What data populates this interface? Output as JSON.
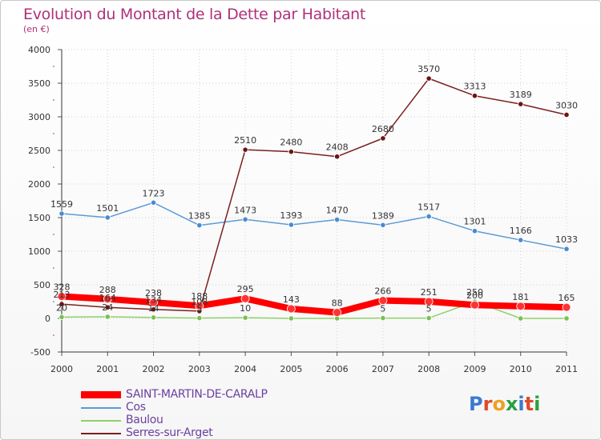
{
  "header": {
    "title": "Evolution du Montant de la Dette par Habitant",
    "unit": "(en €)"
  },
  "logo": {
    "text": "Proxiti",
    "colors": [
      "#3a7ad0",
      "#e04a2a",
      "#f0a020",
      "#2aa040",
      "#3a7ad0",
      "#e04a2a",
      "#2aa040"
    ]
  },
  "chart_data": {
    "type": "line",
    "x": [
      "2000",
      "2001",
      "2002",
      "2003",
      "2004",
      "2005",
      "2006",
      "2007",
      "2008",
      "2009",
      "2010",
      "2011"
    ],
    "ylim": [
      -500,
      4000
    ],
    "yticks": [
      "-500",
      "0",
      "500",
      "1000",
      "1500",
      "2000",
      "2500",
      "3000",
      "3500",
      "4000"
    ],
    "grid": true,
    "legend": "bottom-left",
    "series": [
      {
        "name": "SAINT-MARTIN-DE-CARALP",
        "color": "#ff0000",
        "marker": "#ff3333",
        "width": 8,
        "values": [
          328,
          288,
          238,
          188,
          295,
          143,
          88,
          266,
          251,
          200,
          181,
          165
        ],
        "labels": [
          "328",
          "288",
          "238",
          "188",
          "295",
          "143",
          "88",
          "266",
          "251",
          "200",
          "181",
          "165"
        ]
      },
      {
        "name": "Cos",
        "color": "#5b9bd5",
        "marker": "#4a8ad0",
        "width": 1.5,
        "values": [
          1559,
          1501,
          1723,
          1385,
          1473,
          1393,
          1470,
          1389,
          1517,
          1301,
          1166,
          1033
        ],
        "labels": [
          "1559",
          "1501",
          "1723",
          "1385",
          "1473",
          "1393",
          "1470",
          "1389",
          "1517",
          "1301",
          "1166",
          "1033"
        ]
      },
      {
        "name": "Baulou",
        "color": "#8fd06a",
        "marker": "#7ac050",
        "width": 1.5,
        "values": [
          20,
          24,
          14,
          5,
          10,
          0,
          0,
          5,
          5,
          250,
          0,
          0
        ],
        "labels": [
          "20",
          "24",
          "14",
          "5",
          "10",
          "",
          "",
          "5",
          "5",
          "250",
          "",
          ""
        ]
      },
      {
        "name": "Serres-sur-Arget",
        "color": "#7a2020",
        "marker": "#6a1515",
        "width": 1.5,
        "values": [
          213,
          164,
          134,
          108,
          2510,
          2480,
          2408,
          2680,
          3570,
          3313,
          3189,
          3030
        ],
        "labels": [
          "213",
          "164",
          "134",
          "108",
          "2510",
          "2480",
          "2408",
          "2680",
          "3570",
          "3313",
          "3189",
          "3030"
        ]
      }
    ]
  }
}
